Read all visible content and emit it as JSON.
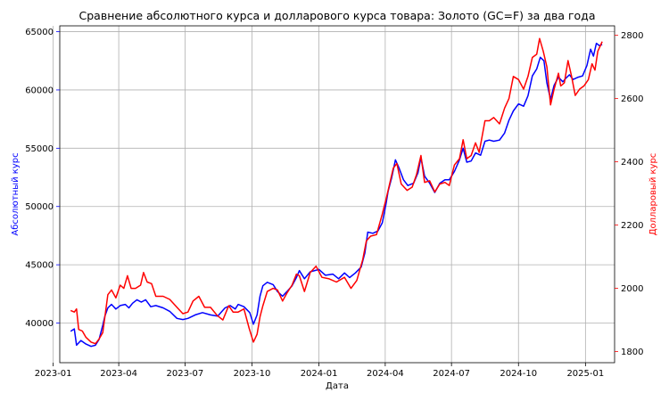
{
  "chart_data": {
    "type": "line",
    "title": "Сравнение абсолютного курса и долларового курса товара: Золото (GC=F) за два года",
    "xlabel": "Дата",
    "x_range": [
      "2023-01-10",
      "2025-02-10"
    ],
    "x_ticks": [
      "2023-01",
      "2023-04",
      "2023-07",
      "2023-10",
      "2024-01",
      "2024-04",
      "2024-07",
      "2024-10",
      "2025-01"
    ],
    "grid": true,
    "y_left": {
      "label": "Абсолютный курс",
      "color": "#0000ff",
      "ylim": [
        36600,
        65500
      ],
      "ticks": [
        "40000",
        "45000",
        "50000",
        "55000",
        "60000",
        "65000"
      ]
    },
    "y_right": {
      "label": "Долларовый курс",
      "color": "#ff0000",
      "ylim": [
        1765,
        2830
      ],
      "ticks": [
        "1800",
        "2000",
        "2200",
        "2400",
        "2600",
        "2800"
      ]
    },
    "series": [
      {
        "axis": "left",
        "color": "#0000ff",
        "points": [
          [
            "2023-01-25",
            39300
          ],
          [
            "2023-01-30",
            39500
          ],
          [
            "2023-02-02",
            38100
          ],
          [
            "2023-02-08",
            38500
          ],
          [
            "2023-02-15",
            38200
          ],
          [
            "2023-02-22",
            38000
          ],
          [
            "2023-02-28",
            38100
          ],
          [
            "2023-03-05",
            38600
          ],
          [
            "2023-03-10",
            39800
          ],
          [
            "2023-03-13",
            40600
          ],
          [
            "2023-03-17",
            41300
          ],
          [
            "2023-03-22",
            41600
          ],
          [
            "2023-03-28",
            41200
          ],
          [
            "2023-04-03",
            41500
          ],
          [
            "2023-04-10",
            41600
          ],
          [
            "2023-04-15",
            41300
          ],
          [
            "2023-04-20",
            41700
          ],
          [
            "2023-04-26",
            42000
          ],
          [
            "2023-05-02",
            41800
          ],
          [
            "2023-05-08",
            42000
          ],
          [
            "2023-05-15",
            41400
          ],
          [
            "2023-05-22",
            41500
          ],
          [
            "2023-06-01",
            41300
          ],
          [
            "2023-06-10",
            41000
          ],
          [
            "2023-06-20",
            40400
          ],
          [
            "2023-06-28",
            40300
          ],
          [
            "2023-07-05",
            40400
          ],
          [
            "2023-07-15",
            40700
          ],
          [
            "2023-07-25",
            40900
          ],
          [
            "2023-08-05",
            40700
          ],
          [
            "2023-08-15",
            40600
          ],
          [
            "2023-08-25",
            41300
          ],
          [
            "2023-09-01",
            41500
          ],
          [
            "2023-09-08",
            41200
          ],
          [
            "2023-09-12",
            41600
          ],
          [
            "2023-09-20",
            41400
          ],
          [
            "2023-09-28",
            40900
          ],
          [
            "2023-10-03",
            39900
          ],
          [
            "2023-10-08",
            40700
          ],
          [
            "2023-10-12",
            42300
          ],
          [
            "2023-10-16",
            43200
          ],
          [
            "2023-10-22",
            43500
          ],
          [
            "2023-10-30",
            43300
          ],
          [
            "2023-11-05",
            42700
          ],
          [
            "2023-11-12",
            42300
          ],
          [
            "2023-11-18",
            42700
          ],
          [
            "2023-11-25",
            43200
          ],
          [
            "2023-12-01",
            43900
          ],
          [
            "2023-12-05",
            44500
          ],
          [
            "2023-12-12",
            43800
          ],
          [
            "2023-12-20",
            44400
          ],
          [
            "2024-01-01",
            44600
          ],
          [
            "2024-01-10",
            44100
          ],
          [
            "2024-01-20",
            44200
          ],
          [
            "2024-01-28",
            43800
          ],
          [
            "2024-02-05",
            44300
          ],
          [
            "2024-02-12",
            43900
          ],
          [
            "2024-02-20",
            44300
          ],
          [
            "2024-02-28",
            44800
          ],
          [
            "2024-03-04",
            46000
          ],
          [
            "2024-03-08",
            47800
          ],
          [
            "2024-03-15",
            47700
          ],
          [
            "2024-03-22",
            47900
          ],
          [
            "2024-03-28",
            48600
          ],
          [
            "2024-04-02",
            50200
          ],
          [
            "2024-04-05",
            51300
          ],
          [
            "2024-04-10",
            52500
          ],
          [
            "2024-04-15",
            54000
          ],
          [
            "2024-04-20",
            53300
          ],
          [
            "2024-04-26",
            52300
          ],
          [
            "2024-05-02",
            51800
          ],
          [
            "2024-05-10",
            52000
          ],
          [
            "2024-05-16",
            52900
          ],
          [
            "2024-05-20",
            54200
          ],
          [
            "2024-05-25",
            52600
          ],
          [
            "2024-06-01",
            52000
          ],
          [
            "2024-06-08",
            51200
          ],
          [
            "2024-06-15",
            52000
          ],
          [
            "2024-06-22",
            52300
          ],
          [
            "2024-06-28",
            52300
          ],
          [
            "2024-07-05",
            53000
          ],
          [
            "2024-07-12",
            54000
          ],
          [
            "2024-07-17",
            55000
          ],
          [
            "2024-07-22",
            53800
          ],
          [
            "2024-07-28",
            53900
          ],
          [
            "2024-08-03",
            54600
          ],
          [
            "2024-08-10",
            54400
          ],
          [
            "2024-08-16",
            55600
          ],
          [
            "2024-08-22",
            55700
          ],
          [
            "2024-08-28",
            55600
          ],
          [
            "2024-09-05",
            55700
          ],
          [
            "2024-09-12",
            56300
          ],
          [
            "2024-09-18",
            57400
          ],
          [
            "2024-09-24",
            58200
          ],
          [
            "2024-10-01",
            58800
          ],
          [
            "2024-10-08",
            58600
          ],
          [
            "2024-10-14",
            59500
          ],
          [
            "2024-10-20",
            61200
          ],
          [
            "2024-10-26",
            61800
          ],
          [
            "2024-10-31",
            62800
          ],
          [
            "2024-11-05",
            62500
          ],
          [
            "2024-11-09",
            60600
          ],
          [
            "2024-11-14",
            59200
          ],
          [
            "2024-11-19",
            60400
          ],
          [
            "2024-11-25",
            61100
          ],
          [
            "2024-12-01",
            60700
          ],
          [
            "2024-12-05",
            61000
          ],
          [
            "2024-12-10",
            61300
          ],
          [
            "2024-12-15",
            60900
          ],
          [
            "2024-12-22",
            61100
          ],
          [
            "2024-12-28",
            61200
          ],
          [
            "2025-01-03",
            62100
          ],
          [
            "2025-01-08",
            63500
          ],
          [
            "2025-01-12",
            62900
          ],
          [
            "2025-01-16",
            64000
          ],
          [
            "2025-01-20",
            63800
          ],
          [
            "2025-01-24",
            63900
          ]
        ]
      },
      {
        "axis": "right",
        "color": "#ff0000",
        "points": [
          [
            "2023-01-25",
            1930
          ],
          [
            "2023-01-30",
            1925
          ],
          [
            "2023-02-02",
            1935
          ],
          [
            "2023-02-05",
            1870
          ],
          [
            "2023-02-10",
            1865
          ],
          [
            "2023-02-15",
            1845
          ],
          [
            "2023-02-22",
            1830
          ],
          [
            "2023-02-28",
            1825
          ],
          [
            "2023-03-05",
            1840
          ],
          [
            "2023-03-10",
            1860
          ],
          [
            "2023-03-13",
            1910
          ],
          [
            "2023-03-17",
            1980
          ],
          [
            "2023-03-22",
            1995
          ],
          [
            "2023-03-28",
            1970
          ],
          [
            "2023-04-03",
            2010
          ],
          [
            "2023-04-08",
            2000
          ],
          [
            "2023-04-13",
            2040
          ],
          [
            "2023-04-18",
            2000
          ],
          [
            "2023-04-24",
            2000
          ],
          [
            "2023-05-01",
            2010
          ],
          [
            "2023-05-05",
            2050
          ],
          [
            "2023-05-10",
            2020
          ],
          [
            "2023-05-16",
            2015
          ],
          [
            "2023-05-22",
            1975
          ],
          [
            "2023-06-01",
            1975
          ],
          [
            "2023-06-10",
            1965
          ],
          [
            "2023-06-20",
            1940
          ],
          [
            "2023-06-28",
            1920
          ],
          [
            "2023-07-05",
            1925
          ],
          [
            "2023-07-12",
            1960
          ],
          [
            "2023-07-20",
            1975
          ],
          [
            "2023-07-28",
            1940
          ],
          [
            "2023-08-05",
            1940
          ],
          [
            "2023-08-14",
            1915
          ],
          [
            "2023-08-22",
            1900
          ],
          [
            "2023-08-30",
            1945
          ],
          [
            "2023-09-05",
            1925
          ],
          [
            "2023-09-12",
            1925
          ],
          [
            "2023-09-20",
            1935
          ],
          [
            "2023-09-27",
            1875
          ],
          [
            "2023-10-03",
            1830
          ],
          [
            "2023-10-08",
            1855
          ],
          [
            "2023-10-12",
            1910
          ],
          [
            "2023-10-16",
            1945
          ],
          [
            "2023-10-22",
            1990
          ],
          [
            "2023-10-30",
            2000
          ],
          [
            "2023-11-05",
            1995
          ],
          [
            "2023-11-12",
            1960
          ],
          [
            "2023-11-18",
            1985
          ],
          [
            "2023-11-25",
            2010
          ],
          [
            "2023-12-01",
            2045
          ],
          [
            "2023-12-05",
            2040
          ],
          [
            "2023-12-12",
            1990
          ],
          [
            "2023-12-20",
            2050
          ],
          [
            "2023-12-28",
            2070
          ],
          [
            "2024-01-05",
            2035
          ],
          [
            "2024-01-15",
            2030
          ],
          [
            "2024-01-25",
            2020
          ],
          [
            "2024-02-05",
            2035
          ],
          [
            "2024-02-14",
            2000
          ],
          [
            "2024-02-22",
            2025
          ],
          [
            "2024-03-01",
            2090
          ],
          [
            "2024-03-06",
            2150
          ],
          [
            "2024-03-12",
            2165
          ],
          [
            "2024-03-20",
            2170
          ],
          [
            "2024-03-28",
            2235
          ],
          [
            "2024-04-03",
            2290
          ],
          [
            "2024-04-08",
            2340
          ],
          [
            "2024-04-12",
            2380
          ],
          [
            "2024-04-17",
            2395
          ],
          [
            "2024-04-23",
            2330
          ],
          [
            "2024-05-01",
            2310
          ],
          [
            "2024-05-08",
            2320
          ],
          [
            "2024-05-14",
            2360
          ],
          [
            "2024-05-20",
            2420
          ],
          [
            "2024-05-25",
            2335
          ],
          [
            "2024-06-01",
            2340
          ],
          [
            "2024-06-08",
            2305
          ],
          [
            "2024-06-15",
            2330
          ],
          [
            "2024-06-22",
            2335
          ],
          [
            "2024-06-28",
            2325
          ],
          [
            "2024-07-05",
            2390
          ],
          [
            "2024-07-12",
            2410
          ],
          [
            "2024-07-17",
            2470
          ],
          [
            "2024-07-22",
            2410
          ],
          [
            "2024-07-28",
            2420
          ],
          [
            "2024-08-03",
            2460
          ],
          [
            "2024-08-08",
            2430
          ],
          [
            "2024-08-16",
            2530
          ],
          [
            "2024-08-22",
            2530
          ],
          [
            "2024-08-28",
            2540
          ],
          [
            "2024-09-05",
            2520
          ],
          [
            "2024-09-12",
            2570
          ],
          [
            "2024-09-18",
            2600
          ],
          [
            "2024-09-24",
            2670
          ],
          [
            "2024-10-01",
            2660
          ],
          [
            "2024-10-08",
            2630
          ],
          [
            "2024-10-14",
            2670
          ],
          [
            "2024-10-20",
            2730
          ],
          [
            "2024-10-26",
            2740
          ],
          [
            "2024-10-30",
            2790
          ],
          [
            "2024-11-04",
            2750
          ],
          [
            "2024-11-09",
            2700
          ],
          [
            "2024-11-14",
            2580
          ],
          [
            "2024-11-19",
            2630
          ],
          [
            "2024-11-25",
            2680
          ],
          [
            "2024-11-28",
            2640
          ],
          [
            "2024-12-03",
            2650
          ],
          [
            "2024-12-08",
            2720
          ],
          [
            "2024-12-13",
            2670
          ],
          [
            "2024-12-18",
            2610
          ],
          [
            "2024-12-24",
            2630
          ],
          [
            "2024-12-30",
            2640
          ],
          [
            "2025-01-05",
            2660
          ],
          [
            "2025-01-10",
            2710
          ],
          [
            "2025-01-14",
            2690
          ],
          [
            "2025-01-18",
            2750
          ],
          [
            "2025-01-22",
            2770
          ],
          [
            "2025-01-24",
            2780
          ]
        ]
      }
    ]
  }
}
